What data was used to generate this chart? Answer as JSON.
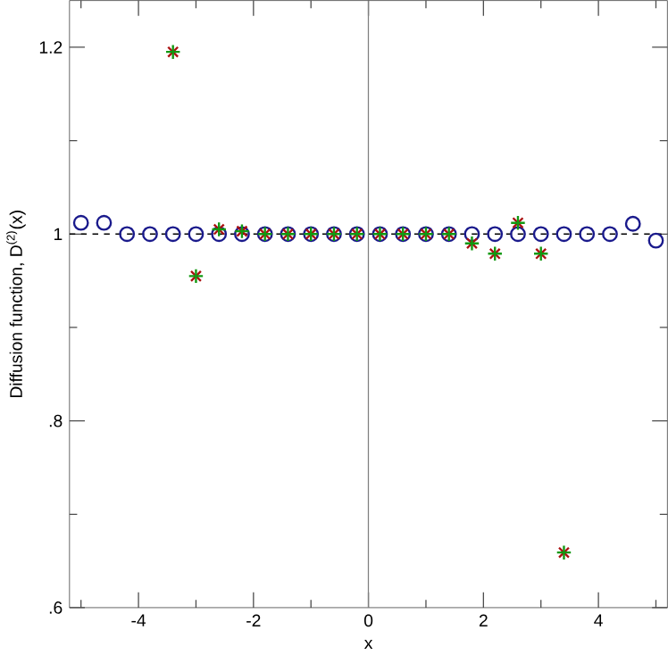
{
  "chart_data": {
    "type": "scatter",
    "xlabel": "x",
    "ylabel": "Diffusion function, D$^{(2)}$(x)",
    "xlim": [
      -5.2,
      5.2
    ],
    "ylim": [
      0.6,
      1.25
    ],
    "xticks": [
      {
        "value": -5,
        "label": null
      },
      -4,
      {
        "value": -3,
        "label": null
      },
      -2,
      {
        "value": -1,
        "label": null
      },
      0,
      {
        "value": 1,
        "label": null
      },
      2,
      {
        "value": 3,
        "label": null
      },
      4,
      {
        "value": 5,
        "label": null
      }
    ],
    "yticks": [
      {
        "value": 0.6,
        "label": ".6"
      },
      {
        "value": 0.7,
        "label": null
      },
      {
        "value": 0.8,
        "label": ".8"
      },
      {
        "value": 0.9,
        "label": null
      },
      1,
      {
        "value": 1.1,
        "label": null
      },
      1.2
    ],
    "grid": false,
    "ref_lines": [
      {
        "axis": "y",
        "value": 1,
        "color": "#000000",
        "line_style": "dashed"
      },
      {
        "axis": "x",
        "value": 0,
        "color": "#808080",
        "line_style": "solid"
      }
    ],
    "series": [
      {
        "color": "#1a1a8c",
        "marker": "circle",
        "x": [
          -5,
          -4.6,
          -4.2,
          -3.8,
          -3.4,
          -3,
          -2.6,
          -2.2,
          -1.8,
          -1.4,
          -1,
          -0.6,
          -0.2,
          0.2,
          0.6,
          1,
          1.4,
          1.8,
          2.2,
          2.6,
          3,
          3.4,
          3.8,
          4.2,
          4.6,
          5
        ],
        "values": [
          1.012,
          1.012,
          1,
          1,
          1,
          1,
          1,
          1,
          1,
          1,
          1,
          1,
          1,
          1,
          1,
          1,
          1,
          1,
          1,
          1,
          1,
          1,
          1,
          1,
          1.011,
          0.993
        ]
      },
      {
        "color": "#aa1111",
        "marker": "cross",
        "x": [
          -3.4,
          -3,
          -2.6,
          -2.2,
          -1.8,
          -1.4,
          -1,
          -0.6,
          -0.2,
          0.2,
          0.6,
          1,
          1.4,
          1.8,
          2.2,
          2.6,
          3,
          3.4
        ],
        "values": [
          1.195,
          0.955,
          1.005,
          1.003,
          1,
          1,
          1,
          1,
          1,
          1,
          1,
          1,
          1,
          0.99,
          0.979,
          1.012,
          0.979,
          0.659
        ]
      },
      {
        "color": "#119911",
        "marker": "plus",
        "x": [
          -3.4,
          -3,
          -2.6,
          -2.2,
          -1.8,
          -1.4,
          -1,
          -0.6,
          -0.2,
          0.2,
          0.6,
          1,
          1.4,
          1.8,
          2.2,
          2.6,
          3,
          3.4
        ],
        "values": [
          1.195,
          0.955,
          1.005,
          1.003,
          1,
          1,
          1,
          1,
          1,
          1,
          1,
          1,
          1,
          0.99,
          0.979,
          1.012,
          0.979,
          0.659
        ]
      }
    ]
  }
}
